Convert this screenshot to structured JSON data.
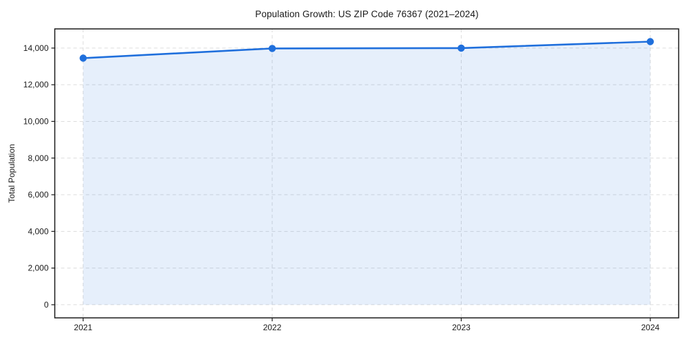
{
  "chart_data": {
    "type": "line",
    "title": "Population Growth: US ZIP Code 76367 (2021–2024)",
    "xlabel": "",
    "ylabel": "Total Population",
    "x": [
      2021,
      2022,
      2023,
      2024
    ],
    "xtick_labels": [
      "2021",
      "2022",
      "2023",
      "2024"
    ],
    "series": [
      {
        "name": "Total Population",
        "values": [
          13450,
          13980,
          14000,
          14350
        ]
      }
    ],
    "yticks": [
      0,
      2000,
      4000,
      6000,
      8000,
      10000,
      12000,
      14000
    ],
    "ytick_labels": [
      "0",
      "2,000",
      "4,000",
      "6,000",
      "8,000",
      "10,000",
      "12,000",
      "14,000"
    ],
    "xlim": [
      2020.85,
      2024.15
    ],
    "ylim": [
      -716,
      15046
    ],
    "grid": true,
    "grid_style": "dashed",
    "legend_position": "none",
    "area_fill": true,
    "area_baseline": 0,
    "marker": "circle",
    "colors": {
      "line": "#1f6fdc",
      "fill": "#1f6fdc",
      "fill_opacity": "0.11",
      "grid": "#dcdcdc",
      "spine": "#1a1a1a",
      "text": "#1a1a1a",
      "background": "#ffffff"
    }
  }
}
